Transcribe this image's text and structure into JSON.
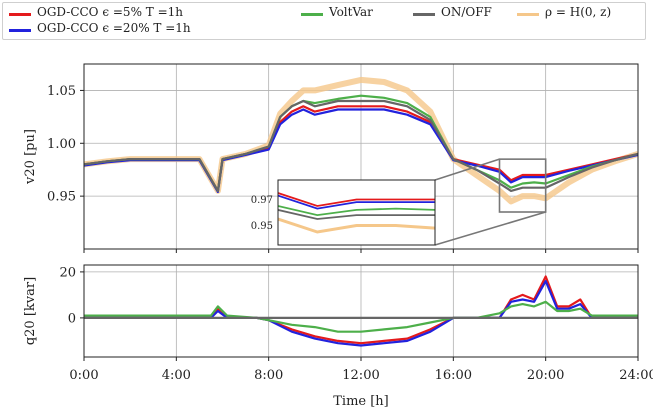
{
  "legend": {
    "items": [
      {
        "label": "OGD-CCO ϵ =5% T =1h",
        "color": "#e41a1c"
      },
      {
        "label": "VoltVar",
        "color": "#4daf4a"
      },
      {
        "label": "ON/OFF",
        "color": "#666666"
      },
      {
        "label": "ρ = H(0, z)",
        "color": "#f5c78a"
      },
      {
        "label": "OGD-CCO ϵ =20% T =1h",
        "color": "#2222dd"
      }
    ]
  },
  "chart_data": [
    {
      "type": "line",
      "ylabel": "v20 [pu]",
      "xlabel": "",
      "xlim": [
        0,
        24
      ],
      "ylim": [
        0.9,
        1.075
      ],
      "yticks": [
        "0.95",
        "1.00",
        "1.05"
      ],
      "ytick_values": [
        0.95,
        1.0,
        1.05
      ],
      "grid": true,
      "series": [
        {
          "name": "OGD-CCO ϵ =5% T =1h",
          "color": "#e41a1c",
          "x": [
            0,
            1,
            2,
            3,
            4,
            5,
            5.8,
            6,
            7,
            8,
            8.5,
            9,
            9.5,
            10,
            11,
            12,
            13,
            14,
            15,
            16,
            17,
            18,
            18.5,
            19,
            19.5,
            20,
            21,
            22,
            23,
            24
          ],
          "y": [
            0.98,
            0.983,
            0.985,
            0.985,
            0.985,
            0.985,
            0.955,
            0.985,
            0.99,
            0.995,
            1.02,
            1.03,
            1.035,
            1.03,
            1.035,
            1.035,
            1.035,
            1.03,
            1.02,
            0.985,
            0.98,
            0.975,
            0.965,
            0.97,
            0.97,
            0.97,
            0.975,
            0.98,
            0.985,
            0.99
          ]
        },
        {
          "name": "OGD-CCO ϵ =20% T =1h",
          "color": "#2222dd",
          "x": [
            0,
            1,
            2,
            3,
            4,
            5,
            5.8,
            6,
            7,
            8,
            8.5,
            9,
            9.5,
            10,
            11,
            12,
            13,
            14,
            15,
            16,
            17,
            18,
            18.5,
            19,
            19.5,
            20,
            21,
            22,
            23,
            24
          ],
          "y": [
            0.979,
            0.982,
            0.984,
            0.984,
            0.984,
            0.984,
            0.954,
            0.984,
            0.989,
            0.994,
            1.018,
            1.027,
            1.032,
            1.027,
            1.032,
            1.032,
            1.032,
            1.027,
            1.018,
            0.984,
            0.979,
            0.973,
            0.963,
            0.968,
            0.968,
            0.968,
            0.974,
            0.979,
            0.984,
            0.989
          ]
        },
        {
          "name": "VoltVar",
          "color": "#4daf4a",
          "x": [
            0,
            1,
            2,
            3,
            4,
            5,
            5.8,
            6,
            7,
            8,
            8.5,
            9,
            9.5,
            10,
            11,
            12,
            13,
            14,
            15,
            16,
            17,
            18,
            18.5,
            19,
            19.5,
            20,
            21,
            22,
            23,
            24
          ],
          "y": [
            0.98,
            0.983,
            0.985,
            0.985,
            0.985,
            0.985,
            0.955,
            0.985,
            0.99,
            0.997,
            1.025,
            1.035,
            1.04,
            1.038,
            1.042,
            1.045,
            1.043,
            1.038,
            1.025,
            0.985,
            0.975,
            0.965,
            0.958,
            0.962,
            0.963,
            0.962,
            0.97,
            0.978,
            0.984,
            0.99
          ]
        },
        {
          "name": "ON/OFF",
          "color": "#666666",
          "x": [
            0,
            1,
            2,
            3,
            4,
            5,
            5.8,
            6,
            7,
            8,
            8.5,
            9,
            9.5,
            10,
            11,
            12,
            13,
            14,
            15,
            16,
            17,
            18,
            18.5,
            19,
            19.5,
            20,
            21,
            22,
            23,
            24
          ],
          "y": [
            0.98,
            0.983,
            0.985,
            0.985,
            0.985,
            0.985,
            0.955,
            0.985,
            0.99,
            0.997,
            1.025,
            1.035,
            1.04,
            1.035,
            1.04,
            1.04,
            1.04,
            1.035,
            1.022,
            0.985,
            0.975,
            0.962,
            0.955,
            0.958,
            0.958,
            0.958,
            0.968,
            0.977,
            0.984,
            0.99
          ]
        },
        {
          "name": "ρ = H(0, z)",
          "color": "#f5c78a",
          "x": [
            0,
            1,
            2,
            3,
            4,
            5,
            5.8,
            6,
            7,
            8,
            8.5,
            9,
            9.5,
            10,
            11,
            12,
            13,
            14,
            15,
            16,
            17,
            18,
            18.5,
            19,
            19.5,
            20,
            21,
            22,
            23,
            24
          ],
          "y": [
            0.98,
            0.983,
            0.985,
            0.985,
            0.985,
            0.985,
            0.955,
            0.985,
            0.99,
            0.998,
            1.028,
            1.04,
            1.05,
            1.05,
            1.055,
            1.06,
            1.058,
            1.05,
            1.03,
            0.985,
            0.97,
            0.955,
            0.945,
            0.95,
            0.95,
            0.948,
            0.963,
            0.975,
            0.983,
            0.99
          ]
        }
      ],
      "inset": {
        "xlim": [
          18,
          20
        ],
        "ylim": [
          0.935,
          0.985
        ],
        "yticks": [
          "0.97",
          "0.95"
        ],
        "ytick_values": [
          0.97,
          0.95
        ]
      }
    },
    {
      "type": "line",
      "ylabel": "q20 [kvar]",
      "xlabel": "Time [h]",
      "xlim": [
        0,
        24
      ],
      "ylim": [
        -17,
        23
      ],
      "yticks": [
        "20",
        "0"
      ],
      "ytick_values": [
        20,
        0
      ],
      "xticks": [
        "0:00",
        "4:00",
        "8:00",
        "12:00",
        "16:00",
        "20:00",
        "24:00"
      ],
      "xtick_values": [
        0,
        4,
        8,
        12,
        16,
        20,
        24
      ],
      "grid": true,
      "series": [
        {
          "name": "OGD-CCO ϵ =5% T =1h",
          "color": "#e41a1c",
          "x": [
            0,
            5.5,
            5.8,
            6.2,
            7.5,
            8,
            9,
            10,
            11,
            12,
            13,
            14,
            15,
            16,
            17,
            18,
            18.5,
            19,
            19.5,
            20,
            20.5,
            21,
            21.5,
            22,
            24
          ],
          "y": [
            0,
            0,
            4,
            0,
            0,
            -1,
            -5,
            -8,
            -10,
            -11,
            -10,
            -9,
            -5,
            0,
            0,
            0,
            8,
            10,
            8,
            18,
            5,
            5,
            8,
            0,
            0
          ]
        },
        {
          "name": "OGD-CCO ϵ =20% T =1h",
          "color": "#2222dd",
          "x": [
            0,
            5.5,
            5.8,
            6.2,
            7.5,
            8,
            9,
            10,
            11,
            12,
            13,
            14,
            15,
            16,
            17,
            18,
            18.5,
            19,
            19.5,
            20,
            20.5,
            21,
            21.5,
            22,
            24
          ],
          "y": [
            0,
            0,
            3,
            0,
            0,
            -1,
            -6,
            -9,
            -11,
            -12,
            -11,
            -10,
            -6,
            0,
            0,
            0,
            7,
            8,
            7,
            16,
            4,
            4,
            6,
            0,
            0
          ]
        },
        {
          "name": "VoltVar",
          "color": "#4daf4a",
          "x": [
            0,
            2,
            4,
            5.5,
            5.8,
            6.2,
            7.5,
            8,
            9,
            10,
            11,
            12,
            13,
            14,
            15,
            16,
            17,
            18,
            18.5,
            19,
            19.5,
            20,
            20.5,
            21,
            21.5,
            22,
            24
          ],
          "y": [
            1,
            1,
            1,
            1,
            5,
            1,
            0,
            -1,
            -3,
            -4,
            -6,
            -6,
            -5,
            -4,
            -2,
            0,
            0,
            2,
            5,
            6,
            5,
            7,
            3,
            3,
            4,
            1,
            1
          ]
        },
        {
          "name": "ON/OFF",
          "color": "#666666",
          "x": [
            0,
            24
          ],
          "y": [
            0,
            0
          ]
        }
      ]
    }
  ]
}
